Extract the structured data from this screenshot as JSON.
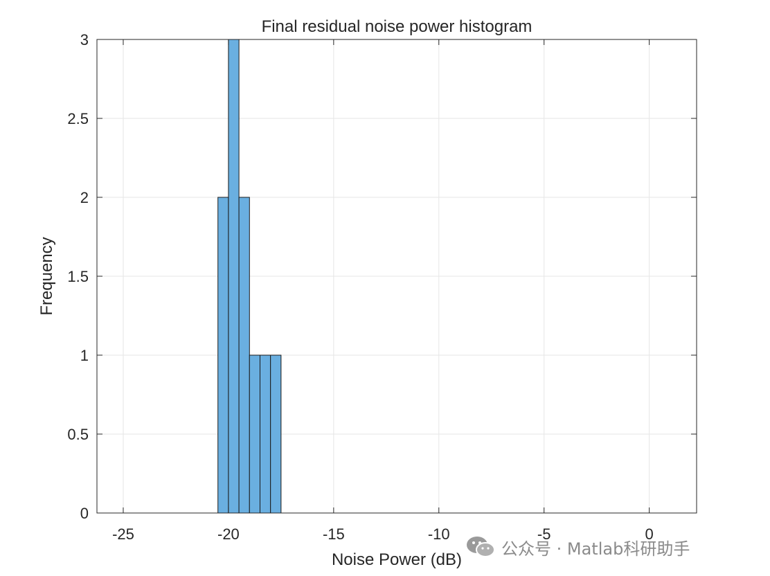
{
  "chart_data": {
    "type": "bar",
    "title": "Final residual noise power histogram",
    "xlabel": "Noise Power (dB)",
    "ylabel": "Frequency",
    "xlim": [
      -26.25,
      2.25
    ],
    "ylim": [
      0,
      3
    ],
    "xticks": [
      -25,
      -20,
      -15,
      -10,
      -5,
      0
    ],
    "yticks": [
      0,
      0.5,
      1,
      1.5,
      2,
      2.5,
      3
    ],
    "xtick_labels": [
      "-25",
      "-20",
      "-15",
      "-10",
      "-5",
      "0"
    ],
    "ytick_labels": [
      "0",
      "0.5",
      "1",
      "1.5",
      "2",
      "2.5",
      "3"
    ],
    "grid": true,
    "bar_color": "#6aafe0",
    "bin_edges": [
      -20.5,
      -20.0,
      -19.5,
      -19.0,
      -18.5,
      -18.0,
      -17.5
    ],
    "counts": [
      2,
      3,
      2,
      1,
      1,
      1
    ]
  },
  "watermark": {
    "text": "公众号 · Matlab科研助手",
    "icon": "wechat-icon"
  }
}
